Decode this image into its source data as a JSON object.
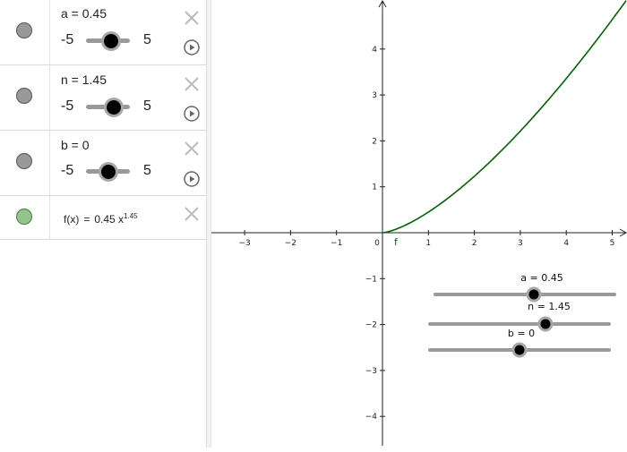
{
  "algebra": {
    "sliders": [
      {
        "label": "a = 0.45",
        "min": "-5",
        "max": "5",
        "value": 0.45
      },
      {
        "label": "n = 1.45",
        "min": "-5",
        "max": "5",
        "value": 1.45
      },
      {
        "label": "b = 0",
        "min": "-5",
        "max": "5",
        "value": 0
      }
    ],
    "function": {
      "name": "f",
      "lhs": "f(x)",
      "eq": "=",
      "coef": "0.45 x",
      "exponent": "1.45"
    }
  },
  "graphics": {
    "function_label": "f",
    "x_ticks": [
      "−3",
      "−2",
      "−1",
      "0",
      "1",
      "2",
      "3",
      "4",
      "5"
    ],
    "y_ticks_pos": [
      "1",
      "2",
      "3",
      "4"
    ],
    "y_ticks_neg": [
      "−1",
      "−2",
      "−3",
      "−4"
    ],
    "curve_color": "#006400",
    "sliders": [
      {
        "label": "a = 0.45",
        "value": 0.45
      },
      {
        "label": "n = 1.45",
        "value": 1.45
      },
      {
        "label": "b = 0",
        "value": 0
      }
    ]
  }
}
